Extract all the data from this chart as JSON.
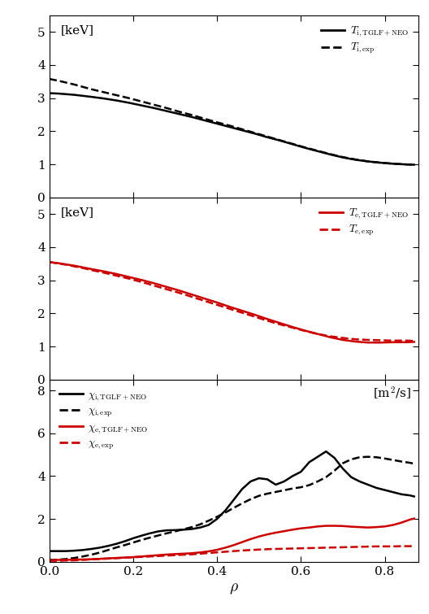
{
  "top_panel": {
    "label_unit": "[keV]",
    "ylim": [
      0,
      5.5
    ],
    "yticks": [
      0,
      1,
      2,
      3,
      4,
      5
    ],
    "Ti_TGLF": {
      "rho": [
        0.0,
        0.02,
        0.04,
        0.06,
        0.08,
        0.1,
        0.13,
        0.16,
        0.19,
        0.22,
        0.25,
        0.28,
        0.31,
        0.34,
        0.37,
        0.4,
        0.43,
        0.46,
        0.49,
        0.52,
        0.55,
        0.58,
        0.61,
        0.64,
        0.67,
        0.7,
        0.73,
        0.76,
        0.79,
        0.82,
        0.85,
        0.87
      ],
      "val": [
        3.15,
        3.14,
        3.12,
        3.1,
        3.07,
        3.04,
        2.99,
        2.93,
        2.86,
        2.78,
        2.7,
        2.61,
        2.52,
        2.43,
        2.33,
        2.23,
        2.13,
        2.03,
        1.93,
        1.82,
        1.72,
        1.61,
        1.5,
        1.4,
        1.3,
        1.21,
        1.14,
        1.09,
        1.05,
        1.02,
        1.0,
        0.99
      ]
    },
    "Ti_exp": {
      "rho": [
        0.0,
        0.02,
        0.04,
        0.06,
        0.08,
        0.1,
        0.13,
        0.16,
        0.19,
        0.22,
        0.25,
        0.28,
        0.31,
        0.34,
        0.37,
        0.4,
        0.43,
        0.46,
        0.49,
        0.52,
        0.55,
        0.58,
        0.61,
        0.64,
        0.67,
        0.7,
        0.73,
        0.76,
        0.79,
        0.82,
        0.85,
        0.87
      ],
      "val": [
        3.58,
        3.53,
        3.47,
        3.41,
        3.34,
        3.27,
        3.18,
        3.09,
        3.0,
        2.9,
        2.8,
        2.7,
        2.59,
        2.49,
        2.38,
        2.27,
        2.17,
        2.06,
        1.95,
        1.84,
        1.73,
        1.62,
        1.51,
        1.41,
        1.31,
        1.22,
        1.15,
        1.09,
        1.05,
        1.02,
        1.0,
        0.99
      ]
    },
    "legend": [
      {
        "label": "$T_{\\mathrm{i,TGLF+NEO}}$",
        "color": "black",
        "ls": "solid",
        "lw": 2.0
      },
      {
        "label": "$T_{\\mathrm{i,exp}}$",
        "color": "black",
        "ls": "dashed",
        "lw": 2.0
      }
    ]
  },
  "mid_panel": {
    "label_unit": "[keV]",
    "ylim": [
      0,
      5.5
    ],
    "yticks": [
      0,
      1,
      2,
      3,
      4,
      5
    ],
    "Te_TGLF": {
      "rho": [
        0.0,
        0.02,
        0.04,
        0.06,
        0.08,
        0.1,
        0.13,
        0.16,
        0.19,
        0.22,
        0.25,
        0.28,
        0.31,
        0.34,
        0.37,
        0.4,
        0.43,
        0.46,
        0.49,
        0.52,
        0.55,
        0.58,
        0.61,
        0.64,
        0.67,
        0.7,
        0.73,
        0.76,
        0.79,
        0.82,
        0.85,
        0.87
      ],
      "val": [
        3.55,
        3.52,
        3.48,
        3.44,
        3.39,
        3.34,
        3.27,
        3.19,
        3.1,
        3.01,
        2.91,
        2.8,
        2.69,
        2.57,
        2.45,
        2.33,
        2.2,
        2.08,
        1.96,
        1.83,
        1.71,
        1.59,
        1.48,
        1.38,
        1.28,
        1.2,
        1.15,
        1.12,
        1.12,
        1.13,
        1.13,
        1.14
      ]
    },
    "Te_exp": {
      "rho": [
        0.0,
        0.02,
        0.04,
        0.06,
        0.08,
        0.1,
        0.13,
        0.16,
        0.19,
        0.22,
        0.25,
        0.28,
        0.31,
        0.34,
        0.37,
        0.4,
        0.43,
        0.46,
        0.49,
        0.52,
        0.55,
        0.58,
        0.61,
        0.64,
        0.67,
        0.7,
        0.73,
        0.76,
        0.79,
        0.82,
        0.85,
        0.87
      ],
      "val": [
        3.55,
        3.51,
        3.47,
        3.42,
        3.37,
        3.31,
        3.23,
        3.14,
        3.05,
        2.95,
        2.84,
        2.73,
        2.62,
        2.5,
        2.38,
        2.26,
        2.14,
        2.02,
        1.9,
        1.78,
        1.67,
        1.57,
        1.47,
        1.38,
        1.31,
        1.26,
        1.22,
        1.2,
        1.19,
        1.18,
        1.18,
        1.17
      ]
    },
    "legend": [
      {
        "label": "$T_{\\mathrm{e,TGLF+NEO}}$",
        "color": "#cc0000",
        "ls": "solid",
        "lw": 2.0
      },
      {
        "label": "$T_{\\mathrm{e,exp}}$",
        "color": "#cc0000",
        "ls": "dashed",
        "lw": 2.0
      }
    ]
  },
  "bot_panel": {
    "label_unit": "[m$^2$/s]",
    "ylim": [
      0,
      8.5
    ],
    "yticks": [
      0,
      2,
      4,
      6,
      8
    ],
    "chi_i_TGLF": {
      "rho": [
        0.0,
        0.02,
        0.04,
        0.06,
        0.08,
        0.1,
        0.12,
        0.14,
        0.16,
        0.18,
        0.2,
        0.22,
        0.24,
        0.26,
        0.28,
        0.3,
        0.32,
        0.34,
        0.36,
        0.38,
        0.4,
        0.42,
        0.44,
        0.46,
        0.48,
        0.5,
        0.52,
        0.54,
        0.56,
        0.58,
        0.6,
        0.62,
        0.64,
        0.66,
        0.68,
        0.7,
        0.72,
        0.74,
        0.76,
        0.78,
        0.8,
        0.82,
        0.84,
        0.86,
        0.87
      ],
      "val": [
        0.5,
        0.5,
        0.5,
        0.52,
        0.55,
        0.6,
        0.66,
        0.74,
        0.84,
        0.96,
        1.1,
        1.22,
        1.33,
        1.42,
        1.47,
        1.48,
        1.5,
        1.53,
        1.6,
        1.72,
        2.0,
        2.4,
        2.9,
        3.4,
        3.75,
        3.9,
        3.85,
        3.6,
        3.75,
        4.0,
        4.2,
        4.65,
        4.9,
        5.15,
        4.85,
        4.35,
        3.95,
        3.75,
        3.6,
        3.45,
        3.35,
        3.25,
        3.15,
        3.1,
        3.05
      ]
    },
    "chi_i_exp": {
      "rho": [
        0.0,
        0.02,
        0.04,
        0.06,
        0.08,
        0.1,
        0.12,
        0.14,
        0.16,
        0.18,
        0.2,
        0.22,
        0.24,
        0.26,
        0.28,
        0.3,
        0.32,
        0.34,
        0.36,
        0.38,
        0.4,
        0.42,
        0.44,
        0.46,
        0.48,
        0.5,
        0.52,
        0.54,
        0.56,
        0.58,
        0.6,
        0.62,
        0.64,
        0.66,
        0.68,
        0.7,
        0.72,
        0.74,
        0.76,
        0.78,
        0.8,
        0.82,
        0.84,
        0.86,
        0.87
      ],
      "val": [
        0.08,
        0.1,
        0.13,
        0.18,
        0.25,
        0.33,
        0.43,
        0.55,
        0.67,
        0.78,
        0.9,
        1.02,
        1.13,
        1.23,
        1.33,
        1.42,
        1.52,
        1.62,
        1.75,
        1.92,
        2.1,
        2.3,
        2.52,
        2.73,
        2.92,
        3.08,
        3.18,
        3.26,
        3.34,
        3.42,
        3.48,
        3.58,
        3.75,
        3.95,
        4.25,
        4.6,
        4.78,
        4.88,
        4.9,
        4.88,
        4.82,
        4.75,
        4.68,
        4.62,
        4.58
      ]
    },
    "chi_e_TGLF": {
      "rho": [
        0.0,
        0.02,
        0.04,
        0.06,
        0.08,
        0.1,
        0.12,
        0.14,
        0.16,
        0.18,
        0.2,
        0.22,
        0.24,
        0.26,
        0.28,
        0.3,
        0.32,
        0.34,
        0.36,
        0.38,
        0.4,
        0.42,
        0.44,
        0.46,
        0.48,
        0.5,
        0.52,
        0.54,
        0.56,
        0.58,
        0.6,
        0.62,
        0.64,
        0.66,
        0.68,
        0.7,
        0.72,
        0.74,
        0.76,
        0.78,
        0.8,
        0.82,
        0.84,
        0.86,
        0.87
      ],
      "val": [
        0.08,
        0.09,
        0.09,
        0.1,
        0.11,
        0.12,
        0.14,
        0.16,
        0.18,
        0.2,
        0.22,
        0.25,
        0.28,
        0.31,
        0.34,
        0.36,
        0.38,
        0.4,
        0.44,
        0.49,
        0.56,
        0.66,
        0.78,
        0.92,
        1.06,
        1.18,
        1.28,
        1.36,
        1.43,
        1.5,
        1.56,
        1.6,
        1.65,
        1.68,
        1.68,
        1.67,
        1.64,
        1.62,
        1.6,
        1.62,
        1.65,
        1.72,
        1.83,
        1.97,
        2.02
      ]
    },
    "chi_e_exp": {
      "rho": [
        0.0,
        0.02,
        0.04,
        0.06,
        0.08,
        0.1,
        0.12,
        0.14,
        0.16,
        0.18,
        0.2,
        0.22,
        0.24,
        0.26,
        0.28,
        0.3,
        0.32,
        0.34,
        0.36,
        0.38,
        0.4,
        0.42,
        0.44,
        0.46,
        0.48,
        0.5,
        0.52,
        0.54,
        0.56,
        0.58,
        0.6,
        0.62,
        0.64,
        0.66,
        0.68,
        0.7,
        0.72,
        0.74,
        0.76,
        0.78,
        0.8,
        0.82,
        0.84,
        0.86,
        0.87
      ],
      "val": [
        0.04,
        0.05,
        0.06,
        0.07,
        0.09,
        0.11,
        0.13,
        0.15,
        0.17,
        0.19,
        0.21,
        0.23,
        0.25,
        0.27,
        0.29,
        0.31,
        0.33,
        0.35,
        0.38,
        0.41,
        0.44,
        0.47,
        0.5,
        0.53,
        0.55,
        0.57,
        0.59,
        0.6,
        0.61,
        0.62,
        0.63,
        0.64,
        0.65,
        0.66,
        0.67,
        0.68,
        0.69,
        0.7,
        0.71,
        0.72,
        0.72,
        0.72,
        0.73,
        0.73,
        0.73
      ]
    },
    "legend": [
      {
        "label": "$\\chi_{\\mathrm{i,TGLF+NEO}}$",
        "color": "black",
        "ls": "solid",
        "lw": 2.0
      },
      {
        "label": "$\\chi_{\\mathrm{i,exp}}$",
        "color": "black",
        "ls": "dashed",
        "lw": 2.0
      },
      {
        "label": "$\\chi_{\\mathrm{e,TGLF+NEO}}$",
        "color": "#cc0000",
        "ls": "solid",
        "lw": 2.0
      },
      {
        "label": "$\\chi_{\\mathrm{e,exp}}$",
        "color": "#cc0000",
        "ls": "dashed",
        "lw": 2.0
      }
    ]
  },
  "xlabel": "$\\rho$",
  "xlim": [
    0.0,
    0.88
  ],
  "xticks": [
    0.0,
    0.2,
    0.4,
    0.6,
    0.8
  ],
  "background_color": "#ffffff",
  "linewidth": 1.8
}
